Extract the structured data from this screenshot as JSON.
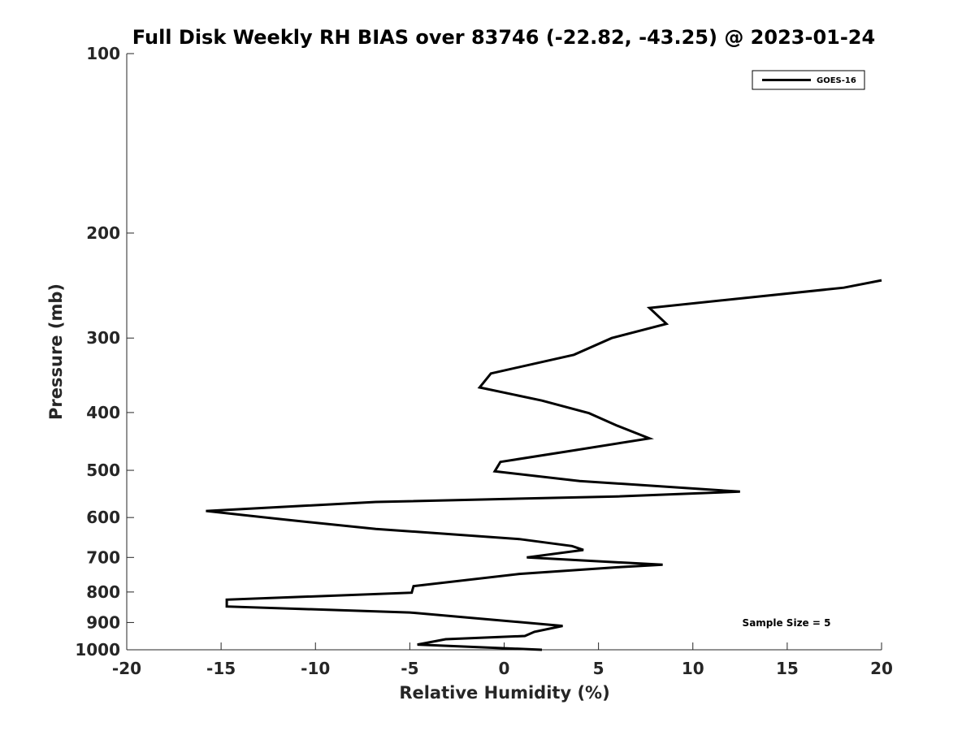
{
  "chart_data": {
    "type": "line",
    "title": "Full Disk Weekly RH BIAS over 83746 (-22.82, -43.25) @ 2023-01-24",
    "xlabel": "Relative Humidity (%)",
    "ylabel": "Pressure (mb)",
    "xlim": [
      -20,
      20
    ],
    "ylim": [
      100,
      1000
    ],
    "yscale": "log",
    "yreversed": true,
    "xticks": [
      "-20",
      "-15",
      "-10",
      "-5",
      "0",
      "5",
      "10",
      "15",
      "20"
    ],
    "yticks": [
      "100",
      "200",
      "300",
      "400",
      "500",
      "600",
      "700",
      "800",
      "900",
      "1000"
    ],
    "grid": false,
    "legend_position": "top-right",
    "series": [
      {
        "name": "GOES-16",
        "color": "#000000",
        "points": [
          {
            "x": 20.0,
            "y": 240
          },
          {
            "x": 18.0,
            "y": 247
          },
          {
            "x": 7.7,
            "y": 267
          },
          {
            "x": 8.6,
            "y": 284
          },
          {
            "x": 5.7,
            "y": 300
          },
          {
            "x": 3.7,
            "y": 320
          },
          {
            "x": -0.7,
            "y": 344
          },
          {
            "x": -1.3,
            "y": 363
          },
          {
            "x": 2.0,
            "y": 382
          },
          {
            "x": 4.5,
            "y": 401
          },
          {
            "x": 6.0,
            "y": 421
          },
          {
            "x": 7.7,
            "y": 442
          },
          {
            "x": 3.7,
            "y": 463
          },
          {
            "x": -0.2,
            "y": 484
          },
          {
            "x": -0.5,
            "y": 502
          },
          {
            "x": 4.0,
            "y": 521
          },
          {
            "x": 12.5,
            "y": 543
          },
          {
            "x": 6.0,
            "y": 553
          },
          {
            "x": -6.8,
            "y": 565
          },
          {
            "x": -15.8,
            "y": 585
          },
          {
            "x": -11.6,
            "y": 605
          },
          {
            "x": -6.8,
            "y": 627
          },
          {
            "x": 0.8,
            "y": 652
          },
          {
            "x": 3.6,
            "y": 670
          },
          {
            "x": 4.2,
            "y": 680
          },
          {
            "x": 1.2,
            "y": 700
          },
          {
            "x": 8.4,
            "y": 720
          },
          {
            "x": 6.0,
            "y": 727
          },
          {
            "x": 0.8,
            "y": 746
          },
          {
            "x": -4.8,
            "y": 782
          },
          {
            "x": -4.9,
            "y": 802
          },
          {
            "x": -14.7,
            "y": 824
          },
          {
            "x": -14.7,
            "y": 846
          },
          {
            "x": -5.0,
            "y": 866
          },
          {
            "x": 3.1,
            "y": 912
          },
          {
            "x": 1.6,
            "y": 933
          },
          {
            "x": 1.1,
            "y": 948
          },
          {
            "x": -3.1,
            "y": 960
          },
          {
            "x": -4.6,
            "y": 980
          },
          {
            "x": 2.0,
            "y": 1000
          }
        ]
      }
    ],
    "annotations": [
      {
        "text": "Sample Size = 5",
        "x": 16.5,
        "y": 900
      }
    ]
  }
}
